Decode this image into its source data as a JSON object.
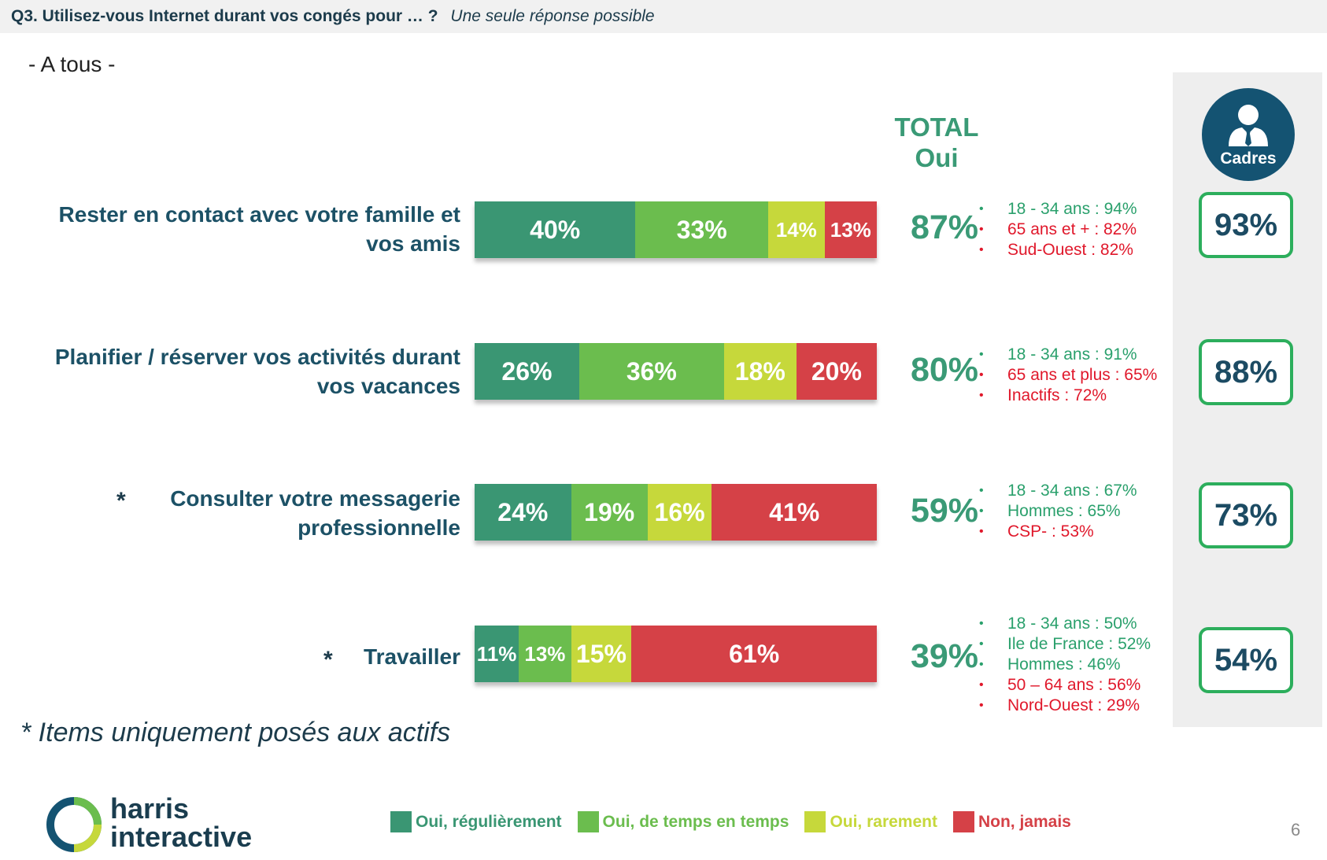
{
  "header": {
    "question": "Q3. Utilisez-vous Internet durant vos congés pour … ?",
    "instruction": "Une seule réponse possible"
  },
  "subheading": "- A tous -",
  "total_header": {
    "line1": "TOTAL",
    "line2": "Oui"
  },
  "cadres": {
    "label": "Cadres",
    "icon": "person-icon",
    "color": "#145372"
  },
  "colors": {
    "oui_regulierement": "#3a9673",
    "oui_temps": "#6bbd4e",
    "oui_rarement": "#c6d83b",
    "non_jamais": "#d54147",
    "total_text": "#3a9a76",
    "detail_up": "#2aa06c",
    "detail_down": "#e0182b"
  },
  "chart_data": {
    "type": "bar",
    "orientation": "horizontal",
    "stacked": true,
    "categories": [
      "Rester en contact avec votre famille et vos amis",
      "Planifier / réserver vos activités durant vos vacances",
      "Consulter votre messagerie professionnelle",
      "Travailler"
    ],
    "series": [
      {
        "name": "Oui, régulièrement",
        "values": [
          40,
          26,
          24,
          11
        ]
      },
      {
        "name": "Oui, de temps en temps",
        "values": [
          33,
          36,
          19,
          13
        ]
      },
      {
        "name": "Oui, rarement",
        "values": [
          14,
          18,
          16,
          15
        ]
      },
      {
        "name": "Non, jamais",
        "values": [
          13,
          20,
          41,
          61
        ]
      }
    ],
    "value_labels": [
      [
        "40%",
        "33%",
        "14%",
        "13%"
      ],
      [
        "26%",
        "36%",
        "18%",
        "20%"
      ],
      [
        "24%",
        "19%",
        "16%",
        "41%"
      ],
      [
        "11%",
        "13%",
        "15%",
        "61%"
      ]
    ],
    "legend_position": "bottom"
  },
  "rows": [
    {
      "label": "Rester en contact avec votre famille et vos amis",
      "asterisk": "",
      "total": "87%",
      "cadres": "93%",
      "details": [
        {
          "text": "18 - 34 ans : 94%",
          "trend": "up"
        },
        {
          "text": "65 ans et + : 82%",
          "trend": "down"
        },
        {
          "text": "Sud-Ouest : 82%",
          "trend": "down"
        }
      ]
    },
    {
      "label": "Planifier / réserver vos activités durant vos vacances",
      "asterisk": "",
      "total": "80%",
      "cadres": "88%",
      "details": [
        {
          "text": "18 - 34 ans : 91%",
          "trend": "up"
        },
        {
          "text": "65 ans et plus : 65%",
          "trend": "down"
        },
        {
          "text": "Inactifs : 72%",
          "trend": "down"
        }
      ]
    },
    {
      "label": "Consulter votre messagerie professionnelle",
      "asterisk": "*",
      "total": "59%",
      "cadres": "73%",
      "details": [
        {
          "text": "18 - 34 ans : 67%",
          "trend": "up"
        },
        {
          "text": "Hommes : 65%",
          "trend": "up"
        },
        {
          "text": "CSP- : 53%",
          "trend": "down"
        }
      ]
    },
    {
      "label": "Travailler",
      "asterisk": "*",
      "total": "39%",
      "cadres": "54%",
      "details": [
        {
          "text": "18 - 34 ans : 50%",
          "trend": "up"
        },
        {
          "text": "Ile de France : 52%",
          "trend": "up"
        },
        {
          "text": "Hommes : 46%",
          "trend": "up"
        },
        {
          "text": "50 – 64 ans : 56%",
          "trend": "down"
        },
        {
          "text": "Nord-Ouest : 29%",
          "trend": "down"
        }
      ]
    }
  ],
  "footnote": "* Items uniquement posés aux actifs",
  "logo": {
    "line1": "harris",
    "line2": "interactive"
  },
  "legend": [
    {
      "label": "Oui, régulièrement",
      "color": "#3a9673",
      "text_color": "#3a9673"
    },
    {
      "label": "Oui, de temps en temps",
      "color": "#6bbd4e",
      "text_color": "#6bbd4e"
    },
    {
      "label": "Oui, rarement",
      "color": "#c6d83b",
      "text_color": "#c6d83b"
    },
    {
      "label": "Non, jamais",
      "color": "#d54147",
      "text_color": "#d54147"
    }
  ],
  "page_number": "6"
}
